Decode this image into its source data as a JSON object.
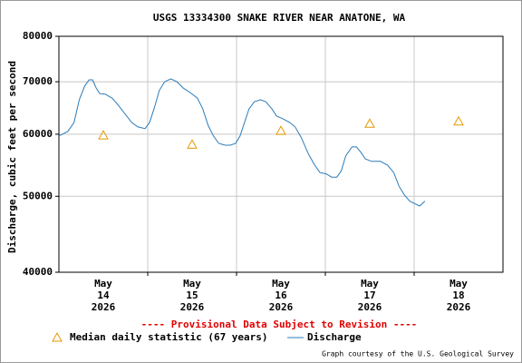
{
  "chart_data": {
    "type": "line",
    "title": "USGS 13334300 SNAKE RIVER NEAR ANATONE, WA",
    "y_label": "Discharge, cubic feet per second",
    "note": "---- Provisional Data Subject to Revision ----",
    "credit": "Graph courtesy of the U.S. Geological Survey",
    "log_y": true,
    "grid": true,
    "ylim": [
      40000,
      80000
    ],
    "yticks": [
      40000,
      50000,
      60000,
      70000,
      80000
    ],
    "xlim": [
      14,
      19
    ],
    "xticks": [
      15,
      16,
      17,
      18
    ],
    "categories": [
      [
        "May",
        "14",
        "2026"
      ],
      [
        "May",
        "15",
        "2026"
      ],
      [
        "May",
        "16",
        "2026"
      ],
      [
        "May",
        "17",
        "2026"
      ],
      [
        "May",
        "18",
        "2026"
      ]
    ],
    "series": [
      {
        "name": "Median daily statistic (67 years)",
        "color": "#e69a00",
        "marker": "triangle",
        "x": [
          14.5,
          15.5,
          16.5,
          17.5,
          18.5
        ],
        "values": [
          59800,
          58200,
          60600,
          61900,
          62300
        ]
      },
      {
        "name": "Discharge",
        "color": "#2b7bb9",
        "marker": "line",
        "x": [
          14.0,
          14.1,
          14.17,
          14.23,
          14.29,
          14.34,
          14.38,
          14.42,
          14.46,
          14.52,
          14.6,
          14.66,
          14.74,
          14.82,
          14.89,
          14.97,
          15.02,
          15.07,
          15.13,
          15.19,
          15.26,
          15.33,
          15.4,
          15.48,
          15.56,
          15.62,
          15.68,
          15.74,
          15.8,
          15.87,
          15.93,
          15.99,
          16.04,
          16.09,
          16.14,
          16.2,
          16.27,
          16.33,
          16.4,
          16.45,
          16.52,
          16.6,
          16.66,
          16.73,
          16.81,
          16.88,
          16.94,
          17.01,
          17.07,
          17.13,
          17.18,
          17.23,
          17.3,
          17.35,
          17.4,
          17.45,
          17.52,
          17.62,
          17.7,
          17.77,
          17.83,
          17.89,
          17.95,
          18.01,
          18.06,
          18.09,
          18.12
        ],
        "values": [
          59700,
          60500,
          62100,
          66400,
          69100,
          70400,
          70400,
          68700,
          67600,
          67500,
          66700,
          65500,
          63800,
          62100,
          61300,
          61000,
          62100,
          64600,
          68200,
          70000,
          70600,
          70000,
          68700,
          67800,
          66700,
          64600,
          61600,
          59700,
          58400,
          58100,
          58100,
          58400,
          59700,
          62100,
          64600,
          66000,
          66400,
          66000,
          64600,
          63300,
          62800,
          62100,
          61300,
          59400,
          56600,
          54800,
          53600,
          53400,
          52900,
          52900,
          53900,
          56300,
          57800,
          57800,
          56900,
          55800,
          55400,
          55400,
          54800,
          53600,
          51500,
          50200,
          49300,
          48900,
          48600,
          48900,
          49300
        ]
      }
    ]
  }
}
